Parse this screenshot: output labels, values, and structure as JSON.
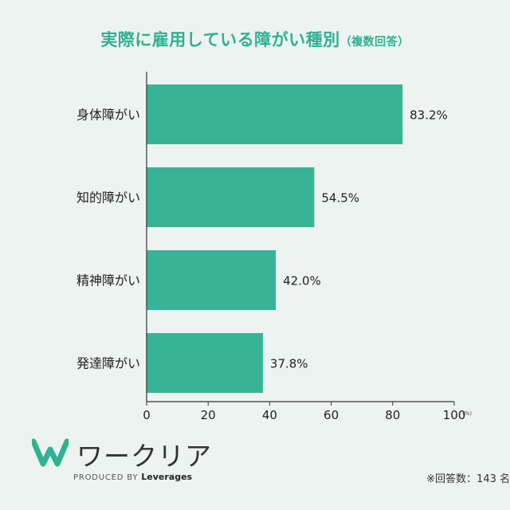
{
  "header": {
    "title": "実際に雇用している障がい種別",
    "subtitle": "（複数回答）"
  },
  "chart_data": {
    "type": "bar",
    "orientation": "horizontal",
    "categories": [
      "身体障がい",
      "知的障がい",
      "精神障がい",
      "発達障がい"
    ],
    "values": [
      83.2,
      54.5,
      42.0,
      37.8
    ],
    "value_labels": [
      "83.2%",
      "54.5%",
      "42.0%",
      "37.8%"
    ],
    "xlim": [
      0,
      100
    ],
    "xticks": [
      "0",
      "20",
      "40",
      "60",
      "80",
      "100"
    ],
    "xunit": "(%)",
    "bar_color": "#37b496",
    "grid": false
  },
  "logo": {
    "name": "ワークリア",
    "produced_by": "PRODUCED BY",
    "brand": "Leverages"
  },
  "footnote": "※回答数：143 名"
}
